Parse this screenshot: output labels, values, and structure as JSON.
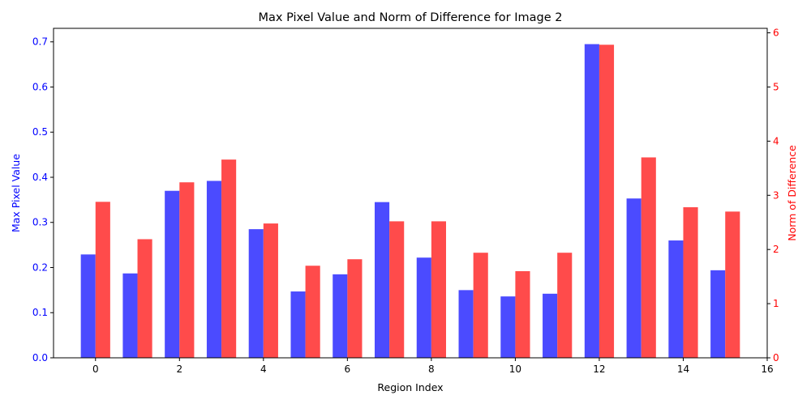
{
  "chart_data": {
    "type": "bar",
    "title": "Max Pixel Value and Norm of Difference for Image 2",
    "xlabel": "Region Index",
    "x": [
      0,
      1,
      2,
      3,
      4,
      5,
      6,
      7,
      8,
      9,
      10,
      11,
      12,
      13,
      14,
      15
    ],
    "xlim": [
      -1,
      16
    ],
    "xticks": [
      "0",
      "2",
      "4",
      "6",
      "8",
      "10",
      "12",
      "14",
      "16"
    ],
    "grid": false,
    "series": [
      {
        "name": "Max Pixel Value",
        "axis": "left",
        "color": "#4b4bff",
        "values": [
          0.229,
          0.187,
          0.37,
          0.392,
          0.285,
          0.147,
          0.185,
          0.345,
          0.222,
          0.15,
          0.136,
          0.142,
          0.695,
          0.353,
          0.26,
          0.194
        ]
      },
      {
        "name": "Norm of Difference",
        "axis": "right",
        "color": "#ff4b4b",
        "values": [
          2.88,
          2.19,
          3.24,
          3.66,
          2.48,
          1.7,
          1.82,
          2.52,
          2.52,
          1.94,
          1.6,
          1.94,
          5.78,
          3.7,
          2.78,
          2.7
        ]
      }
    ],
    "y_left": {
      "label": "Max Pixel Value",
      "lim": [
        0,
        0.73
      ],
      "ticks": [
        "0.0",
        "0.1",
        "0.2",
        "0.3",
        "0.4",
        "0.5",
        "0.6",
        "0.7"
      ],
      "color": "#0000ff"
    },
    "y_right": {
      "label": "Norm of Difference",
      "lim": [
        0,
        6.083
      ],
      "ticks": [
        "0",
        "1",
        "2",
        "3",
        "4",
        "5",
        "6"
      ],
      "color": "#ff0000"
    }
  }
}
